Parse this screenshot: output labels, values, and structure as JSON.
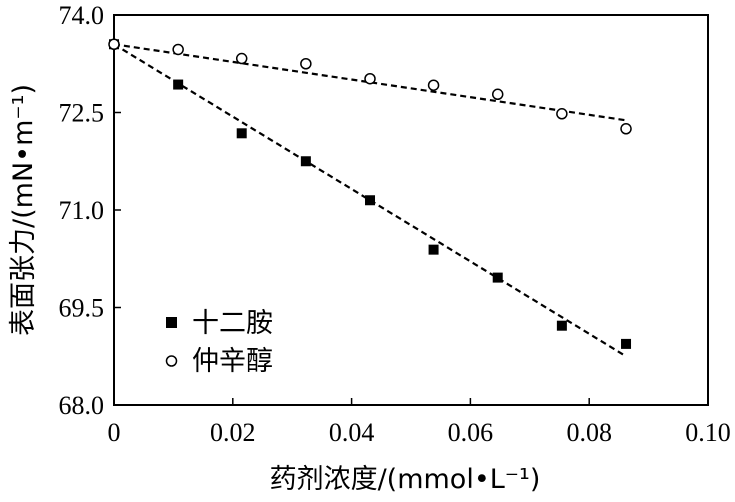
{
  "chart_data": {
    "type": "scatter",
    "xlabel": "药剂浓度/(mmol•L⁻¹)",
    "ylabel": "表面张力/(mN•m⁻¹)",
    "xlim": [
      0,
      0.1
    ],
    "ylim": [
      68.0,
      74.0
    ],
    "xticks": [
      0,
      0.02,
      0.04,
      0.06,
      0.08,
      0.1
    ],
    "xtick_labels": [
      "0",
      "0.02",
      "0.04",
      "0.06",
      "0.08",
      "0.10"
    ],
    "yticks": [
      68.0,
      69.5,
      71.0,
      72.5,
      74.0
    ],
    "ytick_labels": [
      "68.0",
      "69.5",
      "71.0",
      "72.5",
      "74.0"
    ],
    "grid": false,
    "legend_position": "bottom-left",
    "series": [
      {
        "name": "十二胺",
        "marker": "filled-square",
        "color": "#000000",
        "x": [
          0,
          0.0108,
          0.0215,
          0.0323,
          0.0431,
          0.0538,
          0.0646,
          0.0754,
          0.0862
        ],
        "y": [
          73.55,
          72.93,
          72.18,
          71.75,
          71.15,
          70.39,
          69.96,
          69.22,
          68.94
        ],
        "fit_line": {
          "x": [
            0,
            0.0862
          ],
          "y": [
            73.55,
            68.75
          ]
        }
      },
      {
        "name": "仲辛醇",
        "marker": "open-circle",
        "color": "#000000",
        "x": [
          0,
          0.0108,
          0.0215,
          0.0323,
          0.0431,
          0.0538,
          0.0646,
          0.0754,
          0.0862
        ],
        "y": [
          73.55,
          73.47,
          73.33,
          73.25,
          73.02,
          72.92,
          72.78,
          72.48,
          72.25
        ],
        "fit_line": {
          "x": [
            0,
            0.0862
          ],
          "y": [
            73.55,
            72.38
          ]
        }
      }
    ]
  }
}
